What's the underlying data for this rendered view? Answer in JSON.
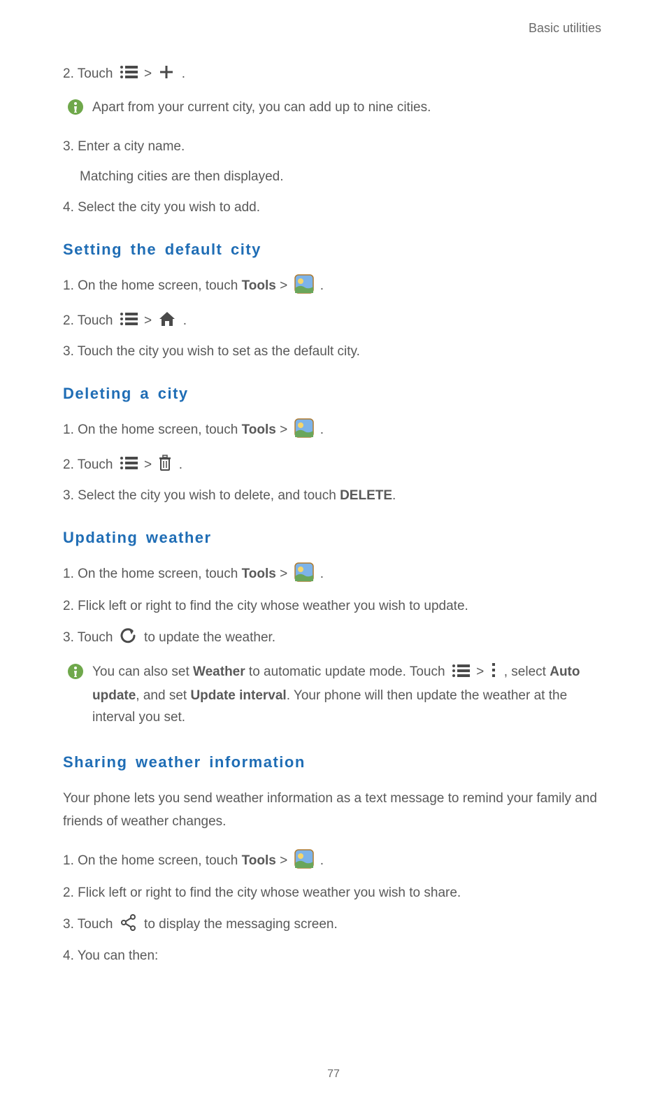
{
  "header": {
    "right": "Basic utilities"
  },
  "icons": {
    "menu_stroke": "#4a4a4a",
    "plus_stroke": "#4a4a4a",
    "home_stroke": "#4a4a4a",
    "trash_stroke": "#4a4a4a",
    "refresh_stroke": "#4a4a4a",
    "overflow_fill": "#4a4a4a",
    "share_stroke": "#4a4a4a",
    "info_bg": "#6fa84b",
    "info_fg": "#ffffff",
    "weather_border": "#b07a2e",
    "weather_sky": "#7db3e8",
    "weather_ground": "#6aa65b",
    "weather_sun": "#f5d66b"
  },
  "top_steps": {
    "s2_prefix": "2. Touch ",
    "s2_gt": " > ",
    "s2_suffix": " .",
    "info2": "Apart from your current city, you can add up to nine cities.",
    "s3": "3. Enter a city name.",
    "s3_sub": "Matching cities are then displayed.",
    "s4": "4. Select the city you wish to add."
  },
  "setting_default": {
    "title": "Setting  the  default  city",
    "s1_a": "1. On the home screen, touch ",
    "s1_tools": "Tools",
    "s1_b": " > ",
    "s1_c": " .",
    "s2_a": "2. Touch ",
    "s2_gt": " > ",
    "s2_c": " .",
    "s3": "3. Touch the city you wish to set as the default city."
  },
  "deleting": {
    "title": "Deleting  a  city",
    "s1_a": "1. On the home screen, touch ",
    "s1_tools": "Tools",
    "s1_b": " > ",
    "s1_c": " .",
    "s2_a": "2. Touch ",
    "s2_gt": " > ",
    "s2_c": " .",
    "s3_a": "3. Select the city you wish to delete, and touch ",
    "s3_delete": "DELETE",
    "s3_b": "."
  },
  "updating": {
    "title": "Updating  weather",
    "s1_a": "1. On the home screen, touch ",
    "s1_tools": "Tools",
    "s1_b": " > ",
    "s1_c": " .",
    "s2": "2. Flick left or right to find the city whose weather you wish to update.",
    "s3_a": "3. Touch ",
    "s3_b": " to update the weather.",
    "info_a": "You can also set ",
    "info_weather": "Weather",
    "info_b": " to automatic update mode. Touch ",
    "info_gt": " > ",
    "info_c": " , select ",
    "info_auto": "Auto update",
    "info_d": ", and set ",
    "info_interval": "Update interval",
    "info_e": ". Your phone will then update the weather at the interval you set."
  },
  "sharing": {
    "title": "Sharing  weather  information",
    "intro": "Your phone lets you send weather information as a text message to remind your family and friends of weather changes.",
    "s1_a": "1. On the home screen, touch ",
    "s1_tools": "Tools",
    "s1_b": " > ",
    "s1_c": " .",
    "s2": "2. Flick left or right to find the city whose weather you wish to share.",
    "s3_a": "3. Touch ",
    "s3_b": " to display the messaging screen.",
    "s4": "4. You can then:"
  },
  "page_number": "77"
}
